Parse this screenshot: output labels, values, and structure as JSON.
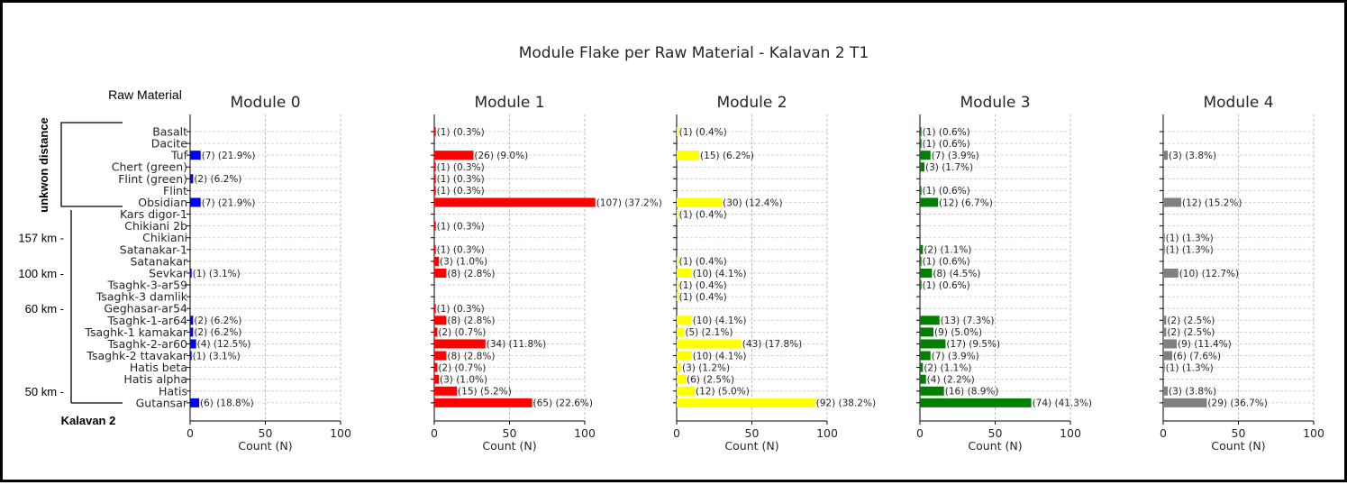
{
  "chart_data": {
    "type": "bar",
    "orientation": "horizontal",
    "title": "Module Flake per Raw Material - Kalavan 2 T1",
    "xlabel": "Count (N)",
    "xlim": [
      0,
      100
    ],
    "xticks": [
      0,
      50,
      100
    ],
    "grid": true,
    "categories": [
      "Basalt",
      "Dacite",
      "Tuf",
      "Chert (green)",
      "Flint (green)",
      "Flint",
      "Obsidian",
      "Kars digor-1",
      "Chikiani 2b",
      "Chikiani",
      "Satanakar-1",
      "Satanakar",
      "Sevkar",
      "Tsaghk-3-ar59",
      "Tsaghk-3 damlik",
      "Geghasar-ar54",
      "Tsaghk-1-ar64",
      "Tsaghk-1 kamakar",
      "Tsaghk-2-ar60",
      "Tsaghk-2 ttavakar",
      "Hatis beta",
      "Hatis alpha",
      "Hatis",
      "Gutansar"
    ],
    "series": [
      {
        "name": "Module 0",
        "color": "#0000ff",
        "values": [
          0,
          0,
          7,
          0,
          2,
          0,
          7,
          0,
          0,
          0,
          0,
          0,
          1,
          0,
          0,
          0,
          2,
          2,
          4,
          1,
          0,
          0,
          0,
          6
        ],
        "labels": [
          "",
          "",
          "(7) (21.9%)",
          "",
          "(2) (6.2%)",
          "",
          "(7) (21.9%)",
          "",
          "",
          "",
          "",
          "",
          "(1) (3.1%)",
          "",
          "",
          "",
          "(2) (6.2%)",
          "(2) (6.2%)",
          "(4) (12.5%)",
          "(1) (3.1%)",
          "",
          "",
          "",
          "(6) (18.8%)"
        ]
      },
      {
        "name": "Module 1",
        "color": "#ff0000",
        "values": [
          1,
          0,
          26,
          1,
          1,
          1,
          107,
          0,
          1,
          0,
          1,
          3,
          8,
          0,
          0,
          1,
          8,
          2,
          34,
          8,
          2,
          3,
          15,
          65
        ],
        "labels": [
          "(1) (0.3%)",
          "",
          "(26) (9.0%)",
          "(1) (0.3%)",
          "(1) (0.3%)",
          "(1) (0.3%)",
          "(107) (37.2%)",
          "",
          "(1) (0.3%)",
          "",
          "(1) (0.3%)",
          "(3) (1.0%)",
          "(8) (2.8%)",
          "",
          "",
          "(1) (0.3%)",
          "(8) (2.8%)",
          "(2) (0.7%)",
          "(34) (11.8%)",
          "(8) (2.8%)",
          "(2) (0.7%)",
          "(3) (1.0%)",
          "(15) (5.2%)",
          "(65) (22.6%)"
        ]
      },
      {
        "name": "Module 2",
        "color": "#ffff00",
        "values": [
          1,
          0,
          15,
          0,
          0,
          0,
          30,
          1,
          0,
          0,
          0,
          1,
          10,
          1,
          1,
          0,
          10,
          5,
          43,
          10,
          3,
          6,
          12,
          92
        ],
        "labels": [
          "(1) (0.4%)",
          "",
          "(15) (6.2%)",
          "",
          "",
          "",
          "(30) (12.4%)",
          "(1) (0.4%)",
          "",
          "",
          "",
          "(1) (0.4%)",
          "(10) (4.1%)",
          "(1) (0.4%)",
          "(1) (0.4%)",
          "",
          "(10) (4.1%)",
          "(5) (2.1%)",
          "(43) (17.8%)",
          "(10) (4.1%)",
          "(3) (1.2%)",
          "(6) (2.5%)",
          "(12) (5.0%)",
          "(92) (38.2%)"
        ]
      },
      {
        "name": "Module 3",
        "color": "#008000",
        "values": [
          1,
          1,
          7,
          3,
          0,
          1,
          12,
          0,
          0,
          0,
          2,
          1,
          8,
          1,
          0,
          0,
          13,
          9,
          17,
          7,
          2,
          4,
          16,
          74
        ],
        "labels": [
          "(1) (0.6%)",
          "(1) (0.6%)",
          "(7) (3.9%)",
          "(3) (1.7%)",
          "",
          "(1) (0.6%)",
          "(12) (6.7%)",
          "",
          "",
          "",
          "(2) (1.1%)",
          "(1) (0.6%)",
          "(8) (4.5%)",
          "(1) (0.6%)",
          "",
          "",
          "(13) (7.3%)",
          "(9) (5.0%)",
          "(17) (9.5%)",
          "(7) (3.9%)",
          "(2) (1.1%)",
          "(4) (2.2%)",
          "(16) (8.9%)",
          "(74) (41.3%)"
        ]
      },
      {
        "name": "Module 4",
        "color": "#808080",
        "values": [
          0,
          0,
          3,
          0,
          0,
          0,
          12,
          0,
          0,
          1,
          1,
          0,
          10,
          0,
          0,
          0,
          2,
          2,
          9,
          6,
          1,
          0,
          3,
          29
        ],
        "labels": [
          "",
          "",
          "(3) (3.8%)",
          "",
          "",
          "",
          "(12) (15.2%)",
          "",
          "",
          "(1) (1.3%)",
          "(1) (1.3%)",
          "",
          "(10) (12.7%)",
          "",
          "",
          "",
          "(2) (2.5%)",
          "(2) (2.5%)",
          "(9) (11.4%)",
          "(6) (7.6%)",
          "(1) (1.3%)",
          "",
          "(3) (3.8%)",
          "(29) (36.7%)"
        ]
      }
    ],
    "annotations": {
      "category_header": "Raw Material",
      "group_label": "unkwon distance",
      "site_label": "Kalavan 2",
      "distance_markers": [
        {
          "text": "157 km -",
          "category": "Chikiani"
        },
        {
          "text": "100 km -",
          "category": "Sevkar"
        },
        {
          "text": "60 km -",
          "category": "Geghasar-ar54"
        },
        {
          "text": "50 km -",
          "category": "Hatis"
        }
      ]
    }
  }
}
